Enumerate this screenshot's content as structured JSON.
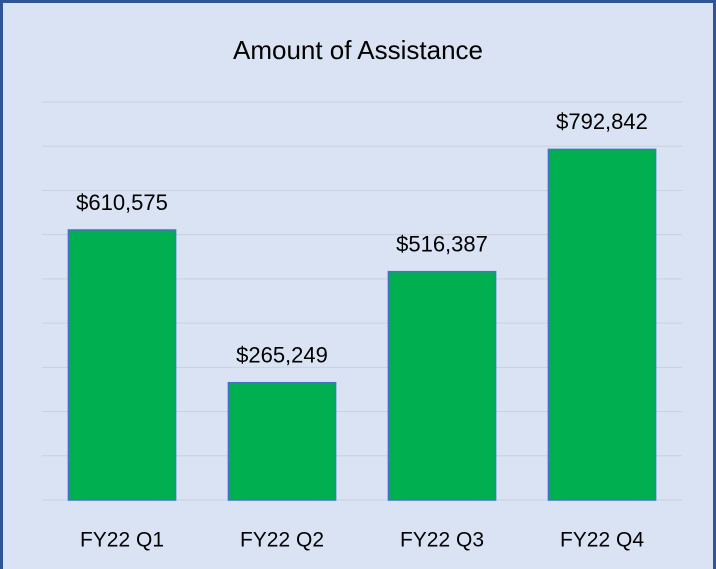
{
  "chart_data": {
    "type": "bar",
    "title": "Amount of Assistance",
    "categories": [
      "FY22 Q1",
      "FY22 Q2",
      "FY22 Q3",
      "FY22 Q4"
    ],
    "values": [
      610575,
      265249,
      516387,
      792842
    ],
    "value_labels": [
      "$610,575",
      "$265,249",
      "$516,387",
      "$792,842"
    ],
    "color": "#00b050",
    "ylim": [
      0,
      900000
    ],
    "yticks": [
      0,
      100000,
      200000,
      300000,
      400000,
      500000,
      600000,
      700000,
      800000,
      900000
    ],
    "grid": true
  }
}
